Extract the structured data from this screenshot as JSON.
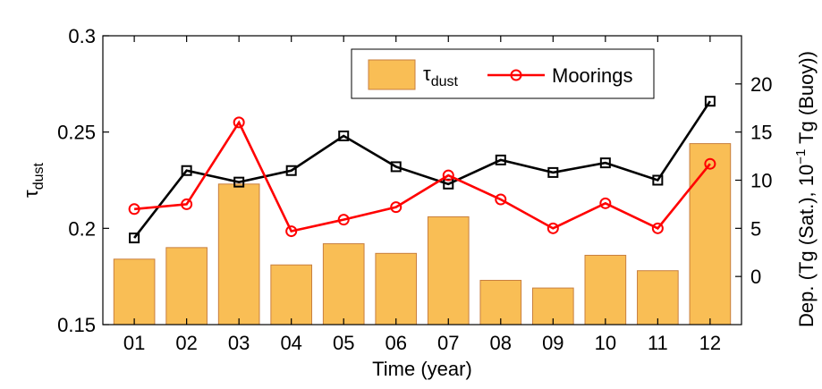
{
  "chart_data": {
    "type": "bar",
    "categories": [
      "01",
      "02",
      "03",
      "04",
      "05",
      "06",
      "07",
      "08",
      "09",
      "10",
      "11",
      "12"
    ],
    "xlabel": "Time (year)",
    "ylabel": {
      "main": "τ",
      "sub": "dust"
    },
    "ylabel_right": {
      "prefix": "Dep. (Tg (Sat.), 10",
      "sup": "−1",
      "suffix": " Tg (Buoy))"
    },
    "ylim": [
      0.15,
      0.3
    ],
    "yticks": [
      "0.15",
      "0.2",
      "0.25",
      "0.3"
    ],
    "yticks_values": [
      0.15,
      0.2,
      0.25,
      0.3
    ],
    "ylim_right": [
      -5,
      25
    ],
    "yticks_right": [
      "0",
      "5",
      "10",
      "15",
      "20"
    ],
    "yticks_right_values": [
      0,
      5,
      10,
      15,
      20
    ],
    "grid": false,
    "legend_placement": "top-right",
    "series": [
      {
        "name": "τ",
        "name_sub": "dust",
        "kind": "bar",
        "axis": "left",
        "color": "#F9BE55",
        "edge": "#C87F3F",
        "values": [
          0.184,
          0.19,
          0.223,
          0.181,
          0.192,
          0.187,
          0.206,
          0.173,
          0.169,
          0.186,
          0.178,
          0.244
        ]
      },
      {
        "name": "",
        "kind": "line",
        "marker": "square",
        "axis": "right",
        "color": "#000000",
        "values": [
          4.0,
          11.0,
          9.8,
          11.0,
          14.6,
          11.4,
          9.6,
          12.1,
          10.8,
          11.8,
          10.0,
          18.2
        ]
      },
      {
        "name": "Moorings",
        "kind": "line",
        "marker": "circle",
        "axis": "right",
        "color": "#FF0000",
        "values": [
          7.0,
          7.5,
          16.0,
          4.7,
          5.9,
          7.2,
          10.5,
          8.0,
          5.0,
          7.6,
          5.0,
          11.7
        ]
      }
    ]
  }
}
